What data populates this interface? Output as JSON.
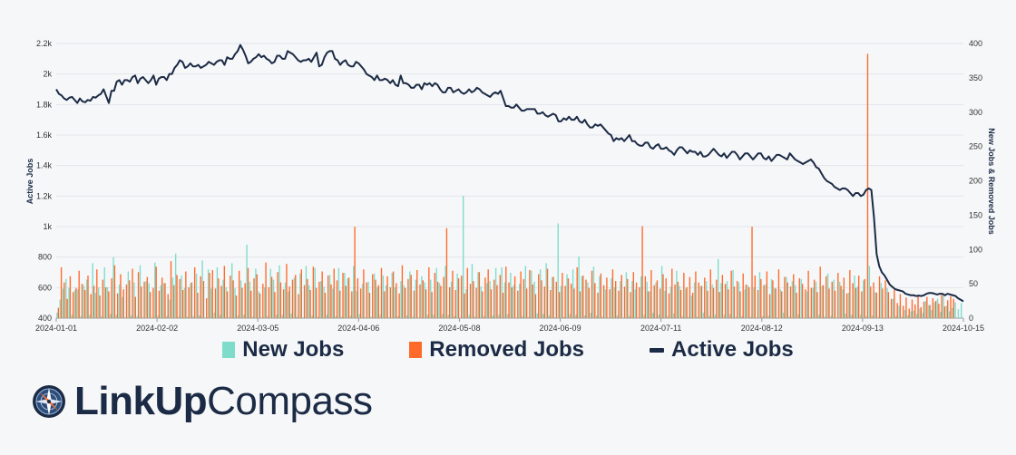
{
  "chart_data": {
    "type": "bar+line",
    "x_start": "2024-01-01",
    "x_end": "2024-10-15",
    "x_ticks": [
      "2024-01-01",
      "2024-02-02",
      "2024-03-05",
      "2024-04-06",
      "2024-05-08",
      "2024-06-09",
      "2024-07-11",
      "2024-08-12",
      "2024-09-13",
      "2024-10-15"
    ],
    "y_left": {
      "label": "Active Jobs",
      "ylim": [
        400,
        2200
      ],
      "ticks": [
        400,
        600,
        800,
        1000,
        1200,
        1400,
        1600,
        1800,
        2000,
        2200
      ],
      "tick_labels": [
        "400",
        "600",
        "800",
        "1k",
        "1.2k",
        "1.4k",
        "1.6k",
        "1.8k",
        "2k",
        "2.2k"
      ]
    },
    "y_right": {
      "label": "New Jobs & Removed Jobs",
      "ylim": [
        0,
        400
      ],
      "ticks": [
        0,
        50,
        100,
        150,
        200,
        250,
        300,
        350,
        400
      ],
      "tick_labels": [
        "0",
        "50",
        "100",
        "150",
        "200",
        "250",
        "300",
        "350",
        "400"
      ]
    },
    "grid": true,
    "series": [
      {
        "name": "New Jobs",
        "type": "bar",
        "axis": "right",
        "color": "#7fdcca",
        "values": [
          8,
          27,
          43,
          57,
          44,
          5,
          41,
          42,
          3,
          48,
          56,
          5,
          80,
          37,
          45,
          3,
          74,
          45,
          6,
          89,
          5,
          49,
          31,
          1,
          68,
          4,
          52,
          3,
          77,
          1,
          54,
          51,
          1,
          81,
          4,
          48,
          51,
          3,
          27,
          59,
          94,
          2,
          62,
          44,
          2,
          51,
          3,
          65,
          4,
          84,
          1,
          71,
          43,
          8,
          74,
          5,
          56,
          45,
          1,
          80,
          44,
          4,
          55,
          5,
          107,
          53,
          2,
          72,
          39,
          1,
          45,
          3,
          72,
          56,
          5,
          77,
          5,
          52,
          39,
          7,
          59,
          2,
          65,
          1,
          76,
          48,
          4,
          73,
          2,
          54,
          46,
          5,
          63,
          43,
          3,
          73,
          2,
          66,
          58,
          4,
          76,
          40,
          6,
          50,
          1,
          53,
          2,
          65,
          45,
          5,
          62,
          48,
          1,
          66,
          45,
          3,
          54,
          48,
          4,
          68,
          2,
          56,
          1,
          61,
          52,
          5,
          56,
          5,
          73,
          51,
          6,
          76,
          5,
          53,
          3,
          65,
          1,
          178,
          42,
          5,
          79,
          2,
          67,
          46,
          3,
          51,
          54,
          4,
          73,
          5,
          74,
          52,
          6,
          66,
          48,
          1,
          50,
          3,
          76,
          2,
          69,
          53,
          7,
          71,
          6,
          80,
          4,
          60,
          1,
          138,
          47,
          2,
          64,
          6,
          71,
          5,
          90,
          61,
          4,
          52,
          8,
          75,
          4,
          61,
          2,
          42,
          1,
          58,
          45,
          4,
          54,
          1,
          67,
          3,
          54,
          42,
          1,
          61,
          5,
          53,
          39,
          8,
          52,
          5,
          76,
          40,
          3,
          46,
          7,
          69,
          47,
          3,
          43,
          2,
          33,
          52,
          2,
          47,
          8,
          54,
          3,
          49,
          5,
          86,
          51,
          5,
          54,
          6,
          70,
          2,
          52,
          3,
          42,
          48,
          2,
          45,
          1,
          67,
          3,
          49,
          4,
          57,
          44,
          1,
          42,
          8,
          60,
          2,
          54,
          48,
          6,
          57,
          1,
          39,
          2,
          44,
          53,
          5,
          47,
          2,
          65,
          3,
          56,
          1,
          53,
          42,
          7,
          37,
          5,
          62,
          46,
          5,
          55,
          3,
          76,
          4,
          38,
          2,
          51,
          1,
          44,
          2,
          28,
          3,
          18,
          2,
          12,
          4,
          10,
          11,
          6,
          14,
          8,
          25,
          19,
          12,
          23,
          28,
          9,
          35,
          18,
          10,
          15,
          23,
          13,
          22
        ]
      },
      {
        "name": "Removed Jobs",
        "type": "bar",
        "axis": "right",
        "color": "#ff6a2b",
        "values": [
          15,
          74,
          52,
          28,
          61,
          38,
          44,
          69,
          50,
          41,
          62,
          35,
          47,
          71,
          33,
          56,
          45,
          39,
          58,
          77,
          36,
          64,
          42,
          49,
          55,
          72,
          31,
          67,
          46,
          53,
          60,
          38,
          44,
          75,
          40,
          59,
          51,
          35,
          83,
          48,
          63,
          57,
          41,
          68,
          45,
          52,
          74,
          37,
          61,
          54,
          29,
          66,
          70,
          43,
          58,
          47,
          76,
          39,
          62,
          55,
          33,
          69,
          44,
          51,
          73,
          40,
          58,
          64,
          36,
          50,
          81,
          45,
          60,
          38,
          67,
          52,
          42,
          79,
          46,
          56,
          63,
          35,
          71,
          48,
          57,
          41,
          75,
          44,
          53,
          68,
          37,
          62,
          49,
          72,
          55,
          40,
          66,
          47,
          59,
          39,
          133,
          58,
          43,
          71,
          52,
          37,
          64,
          56,
          48,
          73,
          39,
          61,
          45,
          68,
          51,
          36,
          77,
          44,
          57,
          63,
          40,
          70,
          49,
          55,
          42,
          74,
          38,
          66,
          53,
          47,
          60,
          131,
          45,
          69,
          41,
          58,
          62,
          36,
          73,
          50,
          54,
          44,
          67,
          39,
          59,
          71,
          42,
          56,
          48,
          63,
          37,
          75,
          52,
          45,
          61,
          40,
          68,
          57,
          43,
          70,
          49,
          35,
          64,
          55,
          46,
          72,
          41,
          60,
          53,
          38,
          66,
          47,
          58,
          50,
          43,
          74,
          39,
          62,
          56,
          44,
          69,
          51,
          37,
          65,
          48,
          59,
          42,
          71,
          54,
          40,
          63,
          46,
          57,
          38,
          67,
          52,
          45,
          134,
          61,
          39,
          70,
          48,
          55,
          43,
          64,
          58,
          36,
          72,
          49,
          53,
          41,
          66,
          45,
          60,
          37,
          68,
          52,
          47,
          59,
          40,
          71,
          44,
          56,
          38,
          63,
          50,
          42,
          69,
          46,
          54,
          39,
          65,
          49,
          45,
          133,
          62,
          41,
          57,
          48,
          68,
          35,
          55,
          43,
          71,
          39,
          60,
          52,
          46,
          64,
          37,
          58,
          50,
          42,
          69,
          44,
          56,
          38,
          75,
          48,
          61,
          43,
          53,
          40,
          66,
          47,
          59,
          36,
          70,
          51,
          44,
          62,
          39,
          57,
          385,
          46,
          52,
          37,
          61,
          43,
          55,
          38,
          28,
          41,
          22,
          35,
          18,
          30,
          14,
          27,
          20,
          33,
          16,
          24,
          31,
          19,
          29,
          25,
          21,
          34,
          17,
          26,
          32,
          28
        ]
      },
      {
        "name": "Active Jobs",
        "type": "line",
        "axis": "left",
        "color": "#1c2b45",
        "values": [
          1900,
          1870,
          1860,
          1840,
          1830,
          1845,
          1850,
          1830,
          1810,
          1840,
          1820,
          1815,
          1830,
          1825,
          1850,
          1845,
          1860,
          1870,
          1900,
          1855,
          1810,
          1890,
          1890,
          1950,
          1960,
          1930,
          1960,
          1960,
          1950,
          1980,
          1990,
          1940,
          1970,
          1980,
          1960,
          1940,
          1960,
          1990,
          1930,
          1970,
          1980,
          1980,
          1960,
          2000,
          2000,
          2040,
          2060,
          2090,
          2080,
          2040,
          2050,
          2070,
          2050,
          2050,
          2060,
          2040,
          2050,
          2060,
          2080,
          2070,
          2060,
          2080,
          2090,
          2090,
          2060,
          2110,
          2100,
          2100,
          2130,
          2150,
          2190,
          2160,
          2120,
          2070,
          2080,
          2100,
          2110,
          2130,
          2110,
          2120,
          2100,
          2090,
          2070,
          2080,
          2120,
          2120,
          2100,
          2100,
          2150,
          2140,
          2130,
          2110,
          2090,
          2080,
          2090,
          2090,
          2100,
          2080,
          2110,
          2140,
          2050,
          2060,
          2110,
          2140,
          2150,
          2150,
          2100,
          2090,
          2060,
          2080,
          2090,
          2060,
          2050,
          2050,
          2080,
          2070,
          2050,
          2030,
          2000,
          1990,
          1980,
          1960,
          1990,
          1960,
          1960,
          1970,
          1960,
          1940,
          1960,
          1930,
          1920,
          1990,
          1940,
          1940,
          1930,
          1910,
          1910,
          1930,
          1930,
          1900,
          1940,
          1930,
          1940,
          1920,
          1940,
          1930,
          1900,
          1880,
          1880,
          1910,
          1910,
          1880,
          1890,
          1900,
          1880,
          1870,
          1880,
          1900,
          1880,
          1890,
          1910,
          1900,
          1880,
          1870,
          1860,
          1850,
          1870,
          1880,
          1870,
          1890,
          1840,
          1790,
          1790,
          1780,
          1780,
          1800,
          1780,
          1760,
          1760,
          1770,
          1770,
          1770,
          1770,
          1740,
          1740,
          1750,
          1730,
          1720,
          1730,
          1740,
          1730,
          1690,
          1690,
          1710,
          1700,
          1720,
          1700,
          1700,
          1720,
          1690,
          1680,
          1700,
          1670,
          1650,
          1650,
          1670,
          1660,
          1670,
          1650,
          1630,
          1610,
          1600,
          1560,
          1580,
          1570,
          1580,
          1560,
          1580,
          1600,
          1560,
          1560,
          1540,
          1530,
          1530,
          1550,
          1550,
          1520,
          1510,
          1530,
          1540,
          1510,
          1510,
          1520,
          1500,
          1490,
          1470,
          1500,
          1520,
          1520,
          1500,
          1480,
          1500,
          1490,
          1490,
          1470,
          1490,
          1460,
          1460,
          1470,
          1490,
          1510,
          1490,
          1470,
          1460,
          1480,
          1450,
          1470,
          1490,
          1490,
          1470,
          1440,
          1460,
          1480,
          1480,
          1460,
          1440,
          1460,
          1480,
          1480,
          1450,
          1440,
          1460,
          1430,
          1450,
          1470,
          1470,
          1460,
          1450,
          1440,
          1480,
          1460,
          1440,
          1430,
          1420,
          1410,
          1420,
          1430,
          1440,
          1420,
          1390,
          1380,
          1350,
          1320,
          1300,
          1290,
          1280,
          1260,
          1250,
          1240,
          1250,
          1250,
          1240,
          1220,
          1200,
          1220,
          1220,
          1200,
          1210,
          1240,
          1250,
          1240,
          1060,
          820,
          740,
          700,
          680,
          650,
          620,
          605,
          590,
          585,
          580,
          575,
          560,
          555,
          550,
          550,
          545,
          548,
          545,
          550,
          560,
          565,
          565,
          560,
          555,
          560,
          560,
          550,
          560,
          555,
          550,
          545,
          530,
          520,
          510
        ]
      }
    ]
  },
  "legend": {
    "new": "New Jobs",
    "removed": "Removed Jobs",
    "active": "Active Jobs"
  },
  "brand": {
    "bold": "LinkUp",
    "light": "Compass"
  }
}
